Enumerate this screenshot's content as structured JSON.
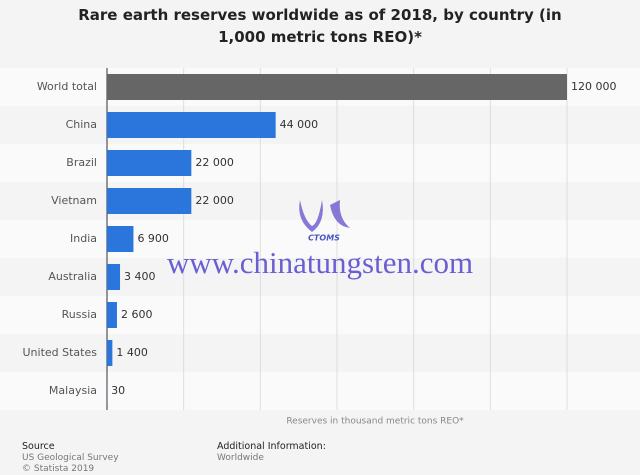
{
  "chart_data": {
    "type": "bar",
    "orientation": "horizontal",
    "title": "Rare earth reserves worldwide as of 2018, by country (in 1,000 metric tons REO)*",
    "categories": [
      "World total",
      "China",
      "Brazil",
      "Vietnam",
      "India",
      "Australia",
      "Russia",
      "United States",
      "Malaysia"
    ],
    "values": [
      120000,
      44000,
      22000,
      22000,
      6900,
      3400,
      2600,
      1400,
      30
    ],
    "value_labels": [
      "120 000",
      "44 000",
      "22 000",
      "22 000",
      "6 900",
      "3 400",
      "2 600",
      "1 400",
      "30"
    ],
    "colors": [
      "#666666",
      "#2a76dd",
      "#2a76dd",
      "#2a76dd",
      "#2a76dd",
      "#2a76dd",
      "#2a76dd",
      "#2a76dd",
      "#2a76dd"
    ],
    "xlim": [
      0,
      120000
    ],
    "xticks": [
      0,
      20000,
      40000,
      60000,
      80000,
      100000,
      120000
    ],
    "grid": true,
    "x_label": "Reserves in thousand metric tons REO*"
  },
  "footer": {
    "source_heading": "Source",
    "source": "US Geological Survey",
    "copyright": "© Statista 2019",
    "info_heading": "Additional Information:",
    "info": "Worldwide"
  },
  "watermark": {
    "text": "www.chinatungsten.com",
    "logo_text": "CTOMS"
  }
}
